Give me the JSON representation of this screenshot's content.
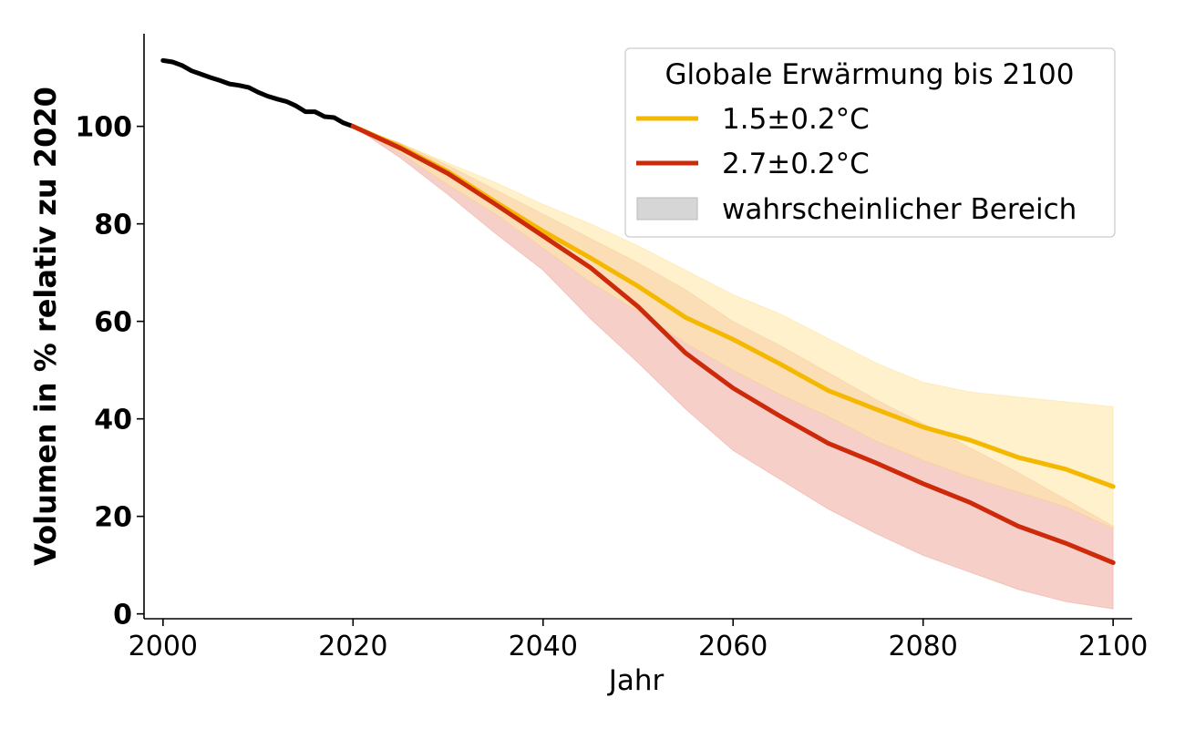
{
  "chart_data": {
    "type": "line",
    "title": "",
    "xlabel": "Jahr",
    "ylabel": "Volumen in % relativ zu 2020",
    "xlim": [
      1998,
      2102
    ],
    "ylim": [
      -1,
      119
    ],
    "x_ticks": [
      2000,
      2020,
      2040,
      2060,
      2080,
      2100
    ],
    "y_ticks": [
      0,
      20,
      40,
      60,
      80,
      100
    ],
    "grid": false,
    "legend": {
      "title": "Globale Erwärmung bis 2100",
      "position": "top-right",
      "band_label": "wahrscheinlicher Bereich",
      "band_color": "#d6d6d6"
    },
    "historical": {
      "color": "#000000",
      "points": [
        [
          2000,
          113.5
        ],
        [
          2001,
          113.2
        ],
        [
          2002,
          112.5
        ],
        [
          2003,
          111.4
        ],
        [
          2004,
          110.7
        ],
        [
          2005,
          110.0
        ],
        [
          2006,
          109.4
        ],
        [
          2007,
          108.7
        ],
        [
          2008,
          108.4
        ],
        [
          2009,
          108.0
        ],
        [
          2010,
          107.0
        ],
        [
          2011,
          106.2
        ],
        [
          2012,
          105.6
        ],
        [
          2013,
          105.1
        ],
        [
          2014,
          104.2
        ],
        [
          2015,
          103.0
        ],
        [
          2016,
          103.0
        ],
        [
          2017,
          102.0
        ],
        [
          2018,
          101.8
        ],
        [
          2019,
          100.7
        ],
        [
          2020,
          100.0
        ]
      ]
    },
    "series": [
      {
        "name": "1.5±0.2°C",
        "color": "#f5b800",
        "band_color": "#fde7a8",
        "x": [
          2020,
          2025,
          2030,
          2035,
          2040,
          2045,
          2050,
          2055,
          2060,
          2065,
          2070,
          2075,
          2080,
          2085,
          2090,
          2095,
          2100
        ],
        "values": [
          100,
          95.8,
          90.7,
          84.5,
          78.5,
          73,
          67.2,
          60.8,
          56.3,
          51.2,
          45.8,
          42,
          38.3,
          35.6,
          32.1,
          29.7,
          26.1
        ],
        "band_low": [
          100,
          94.5,
          88,
          82,
          75,
          68,
          62,
          55.5,
          50,
          45,
          40.5,
          35.5,
          31.5,
          28,
          25,
          22,
          17.5
        ],
        "band_high": [
          100,
          96.5,
          92.5,
          88.5,
          84,
          80,
          75.5,
          70.5,
          65.5,
          61.5,
          56.5,
          51.5,
          47.5,
          45.5,
          44.5,
          43.5,
          42.5
        ]
      },
      {
        "name": "2.7±0.2°C",
        "color": "#cc2a0a",
        "band_color": "#f2b6ac",
        "x": [
          2020,
          2025,
          2030,
          2035,
          2040,
          2045,
          2050,
          2055,
          2060,
          2065,
          2070,
          2075,
          2080,
          2085,
          2090,
          2095,
          2100
        ],
        "values": [
          100,
          95.5,
          90.3,
          84,
          77.5,
          71,
          63,
          53.5,
          46.3,
          40.5,
          35,
          31,
          26.7,
          22.8,
          18,
          14.5,
          10.5
        ],
        "band_low": [
          100,
          93.5,
          86,
          78,
          70.5,
          60.5,
          51.5,
          42,
          33.5,
          27.5,
          21.5,
          16.5,
          12,
          8.5,
          5,
          2.5,
          1
        ],
        "band_high": [
          100,
          96.5,
          92,
          87,
          82,
          77,
          72,
          66.5,
          60,
          55,
          49.5,
          44,
          39,
          34,
          29,
          23.5,
          18
        ]
      }
    ]
  }
}
